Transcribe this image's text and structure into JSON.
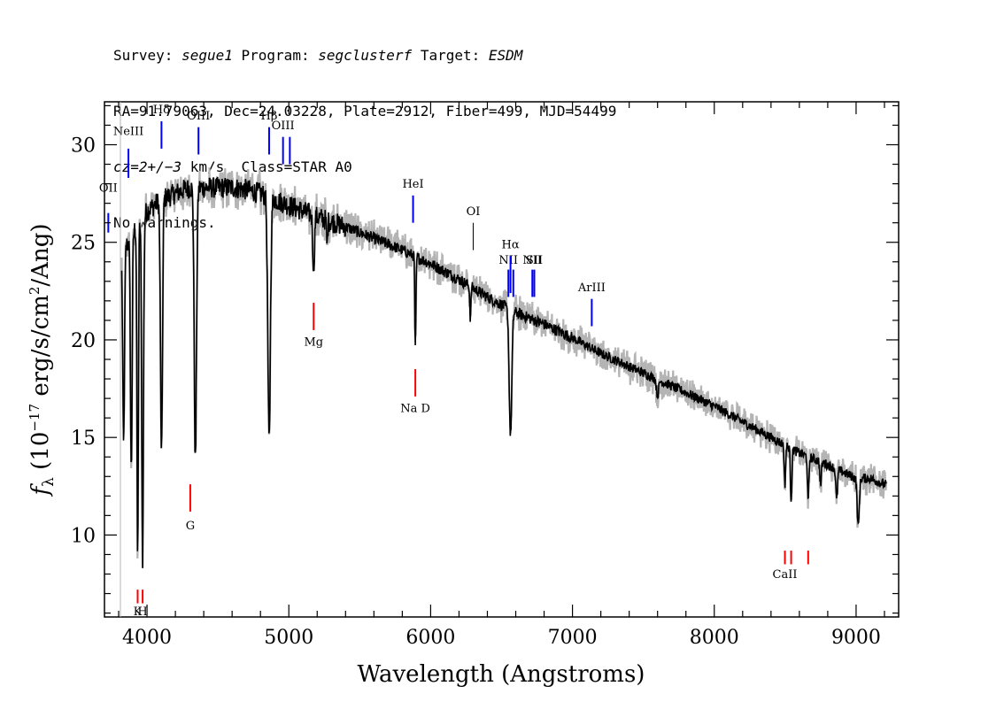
{
  "header": {
    "line1_survey_label": "Survey:",
    "line1_survey_value": "segue1",
    "line1_program_label": "Program:",
    "line1_program_value": "segclusterf",
    "line1_target_label": "Target:",
    "line1_target_value": "ESDM",
    "line2": "RA=91.79063, Dec=24.03228, Plate=2912, Fiber=499, MJD=54499",
    "line3_cz": "cz=2+/−3",
    "line3_rest": " km/s  Class=STAR A0",
    "line4": "No warnings."
  },
  "colors": {
    "flux": "#000000",
    "error": "#b4b4b4",
    "emission": "#0000ff",
    "absorption": "#ff0000",
    "weak_emission": "#000000"
  },
  "chart_data": {
    "type": "line",
    "title": "",
    "xlabel": "Wavelength (Angstroms)",
    "ylabel": "fλ (10⁻¹⁷ erg/s/cm²/Ang)",
    "xlim": [
      3700,
      9300
    ],
    "ylim": [
      5.8,
      32.2
    ],
    "xticks": [
      4000,
      5000,
      6000,
      7000,
      8000,
      9000
    ],
    "yticks": [
      10,
      15,
      20,
      25,
      30
    ],
    "grid": false,
    "legend": "none",
    "continuum": {
      "x": [
        3820,
        3900,
        4000,
        4100,
        4200,
        4300,
        4400,
        4500,
        4600,
        4700,
        4800,
        4900,
        5000,
        5100,
        5200,
        5400,
        5600,
        5800,
        6000,
        6200,
        6400,
        6600,
        6800,
        7000,
        7200,
        7500,
        7800,
        8000,
        8200,
        8400,
        8600,
        8800,
        9000,
        9100,
        9200
      ],
      "y": [
        24.3,
        25.5,
        26.6,
        27.2,
        27.5,
        27.8,
        27.8,
        27.8,
        27.8,
        27.7,
        27.5,
        27.2,
        26.9,
        26.6,
        26.3,
        25.8,
        25.2,
        24.6,
        23.9,
        23.1,
        22.2,
        21.4,
        20.8,
        20.1,
        19.3,
        18.3,
        17.3,
        16.6,
        15.8,
        15.0,
        14.2,
        13.6,
        12.9,
        12.9,
        12.6
      ]
    },
    "absorption_features": [
      {
        "x": 3835,
        "depth": 10.0,
        "width": 6
      },
      {
        "x": 3889,
        "depth": 12.0,
        "width": 6
      },
      {
        "x": 3934,
        "depth": 17.0,
        "width": 5
      },
      {
        "x": 3969,
        "depth": 17.5,
        "width": 6
      },
      {
        "x": 4102,
        "depth": 13.2,
        "width": 7
      },
      {
        "x": 4341,
        "depth": 14.0,
        "width": 8
      },
      {
        "x": 4861,
        "depth": 12.5,
        "width": 9
      },
      {
        "x": 5175,
        "depth": 2.8,
        "width": 6
      },
      {
        "x": 5270,
        "depth": 1.3,
        "width": 4
      },
      {
        "x": 5892,
        "depth": 4.8,
        "width": 4
      },
      {
        "x": 6280,
        "depth": 1.6,
        "width": 4
      },
      {
        "x": 6563,
        "depth": 6.5,
        "width": 9
      },
      {
        "x": 7600,
        "depth": 0.8,
        "width": 8
      },
      {
        "x": 8498,
        "depth": 2.0,
        "width": 5
      },
      {
        "x": 8542,
        "depth": 2.6,
        "width": 5
      },
      {
        "x": 8662,
        "depth": 2.4,
        "width": 5
      },
      {
        "x": 8750,
        "depth": 1.2,
        "width": 5
      },
      {
        "x": 8863,
        "depth": 1.6,
        "width": 6
      },
      {
        "x": 9015,
        "depth": 2.5,
        "width": 7
      }
    ],
    "line_markers": [
      {
        "label": "OII",
        "x": 3727,
        "y1": 25.5,
        "y2": 26.5,
        "label_y": 27.6,
        "type": "emission"
      },
      {
        "label": "NeIII",
        "x": 3869,
        "y1": 28.3,
        "y2": 29.8,
        "label_y": 30.5,
        "type": "emission"
      },
      {
        "label": "Hδ",
        "x": 4102,
        "y1": 29.8,
        "y2": 31.2,
        "label_y": 31.6,
        "type": "emission"
      },
      {
        "label": "OIII",
        "x": 4363,
        "y1": 29.5,
        "y2": 30.9,
        "label_y": 31.3,
        "type": "emission"
      },
      {
        "label": "Hβ",
        "x": 4861,
        "y1": 29.5,
        "y2": 30.9,
        "label_y": 31.3,
        "type": "emission"
      },
      {
        "label": "OIII",
        "x": 4959,
        "y1": 29.0,
        "y2": 30.4,
        "label_y": 30.8,
        "type": "emission"
      },
      {
        "label": "",
        "x": 5007,
        "y1": 29.0,
        "y2": 30.4,
        "label_y": 30.8,
        "type": "emission"
      },
      {
        "label": "HeI",
        "x": 5876,
        "y1": 26.0,
        "y2": 27.4,
        "label_y": 27.8,
        "type": "emission"
      },
      {
        "label": "OI",
        "x": 6300,
        "y1": 24.6,
        "y2": 26.0,
        "label_y": 26.4,
        "type": "weak_emission"
      },
      {
        "label": "NII",
        "x": 6548,
        "y1": 22.2,
        "y2": 23.6,
        "label_y": 23.9,
        "type": "emission"
      },
      {
        "label": "Hα",
        "x": 6563,
        "y1": 22.4,
        "y2": 24.3,
        "label_y": 24.7,
        "type": "emission"
      },
      {
        "label": "",
        "x": 6583,
        "y1": 22.2,
        "y2": 23.6,
        "label_y": 23.9,
        "type": "emission"
      },
      {
        "label": "NII",
        "x": 6717,
        "y1": 22.2,
        "y2": 23.6,
        "label_y": 23.9,
        "type": "emission"
      },
      {
        "label": "SII",
        "x": 6731,
        "y1": 22.2,
        "y2": 23.6,
        "label_y": 23.9,
        "type": "emission"
      },
      {
        "label": "ArIII",
        "x": 7136,
        "y1": 20.7,
        "y2": 22.1,
        "label_y": 22.5,
        "type": "emission"
      },
      {
        "label": "K",
        "x": 3934,
        "y1": 6.5,
        "y2": 7.2,
        "label_y": 5.9,
        "type": "absorption"
      },
      {
        "label": "H",
        "x": 3969,
        "y1": 6.5,
        "y2": 7.2,
        "label_y": 5.9,
        "type": "absorption"
      },
      {
        "label": "G",
        "x": 4305,
        "y1": 11.2,
        "y2": 12.6,
        "label_y": 10.3,
        "type": "absorption"
      },
      {
        "label": "Mg",
        "x": 5175,
        "y1": 20.5,
        "y2": 21.9,
        "label_y": 19.7,
        "type": "absorption"
      },
      {
        "label": "Na  D",
        "x": 5892,
        "y1": 17.1,
        "y2": 18.5,
        "label_y": 16.3,
        "type": "absorption"
      },
      {
        "label": "CaII",
        "x": 8498,
        "y1": 8.5,
        "y2": 9.2,
        "label_y": 7.8,
        "type": "absorption"
      },
      {
        "label": "",
        "x": 8542,
        "y1": 8.5,
        "y2": 9.2,
        "label_y": 7.8,
        "type": "absorption"
      },
      {
        "label": "",
        "x": 8662,
        "y1": 8.5,
        "y2": 9.2,
        "label_y": 7.8,
        "type": "absorption"
      }
    ]
  }
}
